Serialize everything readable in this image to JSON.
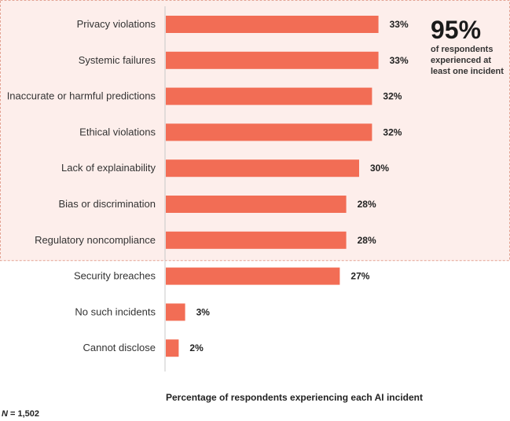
{
  "chart_data": {
    "type": "bar",
    "orientation": "horizontal",
    "categories": [
      "Privacy violations",
      "Systemic failures",
      "Inaccurate or harmful predictions",
      "Ethical violations",
      "Lack of explainability",
      "Bias or discrimination",
      "Regulatory noncompliance",
      "Security breaches",
      "No such incidents",
      "Cannot disclose"
    ],
    "values": [
      33,
      33,
      32,
      32,
      30,
      28,
      28,
      27,
      3,
      2
    ],
    "value_labels": [
      "33%",
      "33%",
      "32%",
      "32%",
      "30%",
      "28%",
      "28%",
      "27%",
      "3%",
      "2%"
    ],
    "xlabel": "Percentage of respondents experiencing each AI incident",
    "xlim": [
      0,
      40
    ],
    "highlighted_categories": 7,
    "bar_color": "#f26d55",
    "highlight_fill": "#fdeeeb",
    "highlight_border": "#e3a393",
    "grid": false,
    "legend": "none"
  },
  "callout": {
    "big": "95%",
    "line1": "of respondents",
    "line2": "experienced at",
    "line3": "least one incident"
  },
  "note": {
    "n_var": "N",
    "n_rest": " = 1,502"
  }
}
